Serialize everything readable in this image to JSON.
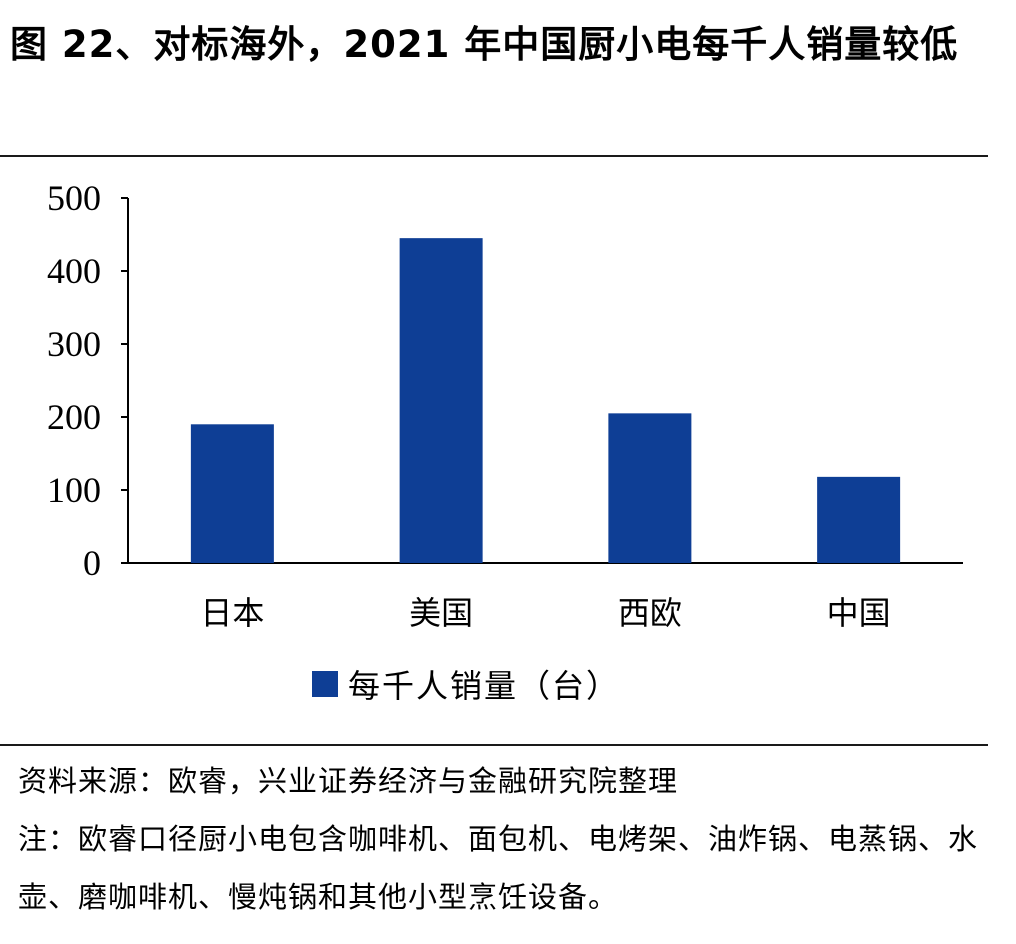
{
  "figure": {
    "title": "图 22、对标海外，2021 年中国厨小电每千人销量较低"
  },
  "chart_data": {
    "type": "bar",
    "categories": [
      "日本",
      "美国",
      "西欧",
      "中国"
    ],
    "series": [
      {
        "name": "每千人销量（台）",
        "values": [
          190,
          445,
          205,
          118
        ],
        "color": "#0e3e95"
      }
    ],
    "ylim": [
      0,
      500
    ],
    "yticks": [
      0,
      100,
      200,
      300,
      400,
      500
    ],
    "grid": false,
    "legend_position": "bottom"
  },
  "notes": {
    "source": "资料来源：欧睿，兴业证券经济与金融研究院整理",
    "note": "注：欧睿口径厨小电包含咖啡机、面包机、电烤架、油炸锅、电蒸锅、水壶、磨咖啡机、慢炖锅和其他小型烹饪设备。"
  }
}
